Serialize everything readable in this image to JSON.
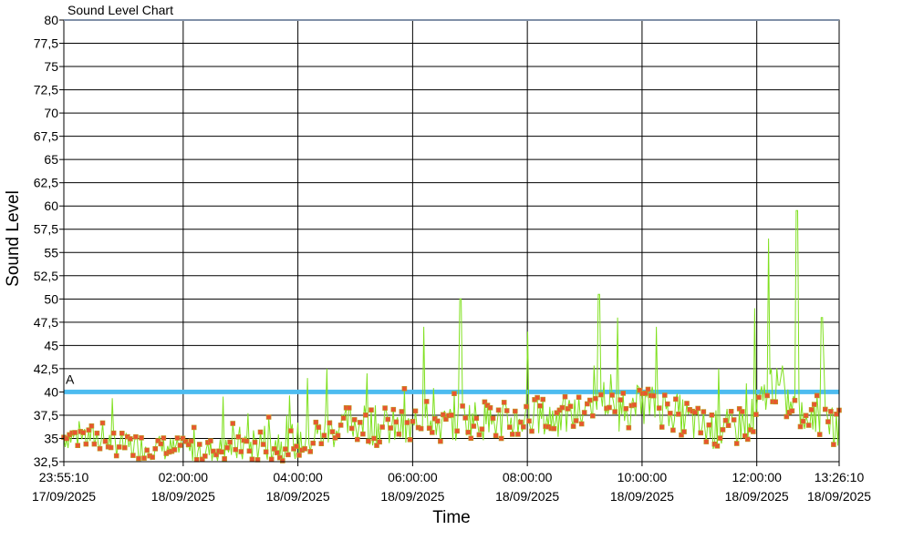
{
  "chart_data": {
    "type": "line",
    "title": "Sound Level Chart",
    "xlabel": "Time",
    "ylabel": "Sound Level",
    "ylim": [
      32.5,
      80
    ],
    "xlim": [
      "2025-09-17T23:55:10",
      "2025-09-18T13:26:10"
    ],
    "y_ticks": [
      "32,5",
      "35",
      "37,5",
      "40",
      "42,5",
      "45",
      "47,5",
      "50",
      "52,5",
      "55",
      "57,5",
      "60",
      "62,5",
      "65",
      "67,5",
      "70",
      "72,5",
      "75",
      "77,5",
      "80"
    ],
    "x_ticks": [
      {
        "time": "23:55:10",
        "date": "17/09/2025"
      },
      {
        "time": "02:00:00",
        "date": "18/09/2025"
      },
      {
        "time": "04:00:00",
        "date": "18/09/2025"
      },
      {
        "time": "06:00:00",
        "date": "18/09/2025"
      },
      {
        "time": "08:00:00",
        "date": "18/09/2025"
      },
      {
        "time": "10:00:00",
        "date": "18/09/2025"
      },
      {
        "time": "12:00:00",
        "date": "18/09/2025"
      },
      {
        "time": "13:26:10",
        "date": "18/09/2025"
      }
    ],
    "grid": true,
    "threshold": {
      "value": 40,
      "label": "A",
      "color": "#4dbcf0"
    },
    "series": [
      {
        "color": "#80e020",
        "marker_color": "#e85530",
        "style": "line-with-square-markers",
        "x": [
          "23:55",
          "00:30",
          "01:00",
          "01:30",
          "02:00",
          "02:30",
          "03:00",
          "03:30",
          "04:00",
          "04:30",
          "05:00",
          "05:30",
          "06:00",
          "06:15",
          "06:30",
          "07:00",
          "07:30",
          "08:00",
          "08:30",
          "09:00",
          "09:15",
          "09:30",
          "10:00",
          "10:30",
          "11:00",
          "11:30",
          "12:00",
          "12:15",
          "12:30",
          "12:45",
          "13:00",
          "13:26"
        ],
        "values": [
          34.5,
          35,
          34,
          34,
          33.5,
          33.5,
          34,
          34.5,
          34.5,
          35.5,
          36.5,
          36,
          35.5,
          38,
          36,
          37,
          36.5,
          37,
          37,
          37.5,
          40,
          37.5,
          38.5,
          38,
          36,
          35.5,
          37.5,
          41,
          39,
          37,
          37.5,
          36
        ]
      },
      {
        "style": "peaks",
        "x": [
          "02:42",
          "03:48",
          "04:10",
          "04:30",
          "05:12",
          "06:12",
          "06:50",
          "08:00",
          "09:15",
          "09:35",
          "10:15",
          "11:20",
          "11:58",
          "12:12",
          "12:42",
          "13:08"
        ],
        "values": [
          39.5,
          37.5,
          41.5,
          42.5,
          42,
          47,
          50,
          46.5,
          50.5,
          48,
          47,
          42.5,
          49,
          56.5,
          59.5,
          48
        ]
      }
    ]
  }
}
